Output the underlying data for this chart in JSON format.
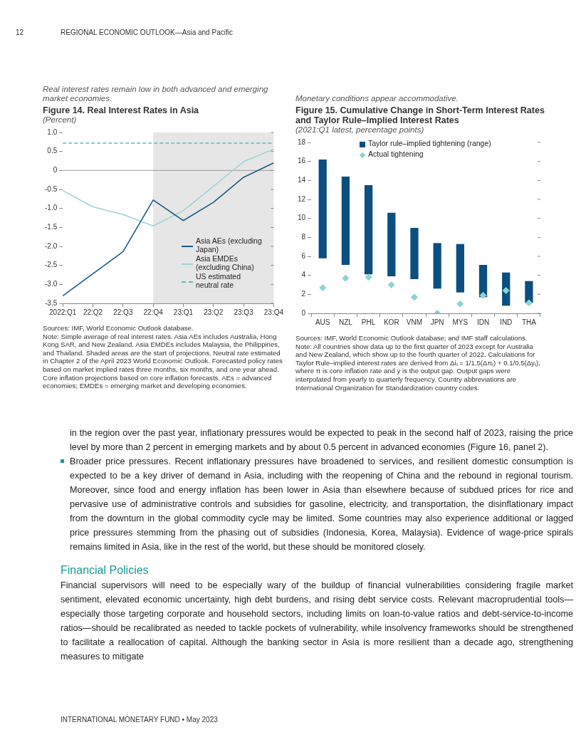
{
  "chart_data": [
    {
      "type": "line",
      "title": "Figure 14. Real Interest Rates in Asia",
      "subtitle": "(Percent)",
      "annotations": [
        "Real interest rates remain low in both advanced and emerging market economies.",
        "Sources: IMF, World Economic Outlook database.",
        "Note: Simple average of real interest rates. Asia AEs includes Australia, Hong Kong SAR, and New Zealand. Asia EMDEs includes Malaysia, the Philippines, and Thailand. Shaded areas are the start of projections. Neutral rate estimated in Chapter 2 of the April 2023 World Economic Outlook. Forecasted policy rates based on market implied rates three months, six months, and one year ahead. Core inflation projections based on core inflation forecasts. AEs = advanced economies; EMDEs = emerging market and developing economies."
      ],
      "categories": [
        "2022:Q1",
        "22:Q2",
        "22:Q3",
        "22:Q4",
        "23:Q1",
        "23:Q2",
        "23:Q3",
        "23:Q4"
      ],
      "series": [
        {
          "name": "Asia AEs (excluding Japan)",
          "color": "#1b5a86",
          "values": [
            -3.3,
            -2.72,
            -2.14,
            -0.78,
            -1.32,
            -0.84,
            -0.18,
            0.2
          ]
        },
        {
          "name": "Asia EMDEs (excluding China)",
          "color": "#9fd3d3",
          "values": [
            -0.53,
            -0.96,
            -1.16,
            -1.46,
            -1.06,
            -0.42,
            0.23,
            0.56
          ]
        },
        {
          "name": "US estimated neutral rate",
          "color": "#5bbcbc",
          "line_style": "dashed",
          "values": [
            0.72,
            0.72,
            0.72,
            0.72,
            0.72,
            0.72,
            0.72,
            0.72
          ]
        }
      ],
      "ylim": [
        -3.5,
        1.0
      ],
      "yticks": [
        {
          "value": 1,
          "label": "1.0"
        },
        0.5,
        0,
        -0.5,
        {
          "value": -1,
          "label": "-1.0"
        },
        -1.5,
        {
          "value": -2,
          "label": "-2.0"
        },
        -2.5,
        {
          "value": -3,
          "label": "-3.0"
        },
        -3.5
      ],
      "ref_lines": [
        {
          "axis": "y",
          "value": 0,
          "color": "#9a9a9a"
        }
      ],
      "bands": [
        {
          "axis": "x",
          "from": "22:Q4",
          "to": "23:Q4",
          "color": "#e6e6e6"
        }
      ],
      "legend": "bottom right",
      "grid": false
    },
    {
      "type": "bar",
      "title": "Figure 15. Cumulative Change in Short-Term Interest Rates and Taylor Rule–Implied Interest Rates",
      "subtitle": "(2021:Q1 latest, percentage points)",
      "annotations": [
        "Monetary conditions appear accommodative.",
        "Sources: IMF, World Economic Outlook database; and IMF staff calculations.",
        "Note: All countries show data up to the first quarter of 2023 except for Australia and New Zealand, which show up to the fourth quarter of 2022. Calculations for Taylor Rule–implied interest rates are derived from Δiₜ = 1/1.5(Δπₜ) + 0.1/0.5(Δyₜ), where π is core inflation rate and y is the output gap. Output gaps were interpolated from yearly to quarterly frequency. Country abbreviations are International Organization for Standardization country codes."
      ],
      "categories": [
        "AUS",
        "NZL",
        "PHL",
        "KOR",
        "VNM",
        "JPN",
        "MYS",
        "IDN",
        "IND",
        "THA"
      ],
      "series": [
        {
          "name": "Taylor rule–implied tightening (range)",
          "color": "#0b4f80",
          "base": [
            5.8,
            5.1,
            4.1,
            3.9,
            3.6,
            2.6,
            2.2,
            1.7,
            0.8,
            1.1
          ],
          "values": [
            10.4,
            9.3,
            9.4,
            6.7,
            5.4,
            4.8,
            5.1,
            3.4,
            3.5,
            2.3
          ]
        },
        {
          "name": "Actual tightening",
          "type": "scatter",
          "marker": "diamond",
          "color": "#8fd3d0",
          "values": [
            2.7,
            3.7,
            3.8,
            3.0,
            1.7,
            0,
            1.0,
            1.9,
            2.4,
            1.1
          ]
        }
      ],
      "ylim": [
        0,
        18
      ],
      "yticks": [
        0,
        2,
        4,
        6,
        8,
        10,
        12,
        14,
        16,
        18
      ],
      "legend": "top right",
      "grid": false
    },
    {
      "type": "other",
      "annotations": [
        "12",
        "REGIONAL ECONOMIC OUTLOOK—Asia and Pacific",
        "in the region over the past year, inflationary pressures would be expected to peak in the second half of 2023, raising the price level by more than 2 percent in emerging markets and by about 0.5 percent in advanced economies (Figure 16, panel 2).",
        "Broader price pressures. Recent inflationary pressures have broadened to services, and resilient domestic consumption is expected to be a key driver of demand in Asia, including with the reopening of China and the rebound in regional tourism. Moreover, since food and energy inflation has been lower in Asia than elsewhere because of subdued prices for rice and pervasive use of administrative controls and subsidies for gasoline, electricity, and transportation, the disinflationary impact from the downturn in the global commodity cycle may be limited. Some countries may also experience additional or lagged price pressures stemming from the phasing out of subsidies (Indonesia, Korea, Malaysia). Evidence of wage-price spirals remains limited in Asia, like in the rest of the world, but these should be monitored closely.",
        "Financial Policies",
        "Financial supervisors will need to be especially wary of the buildup of financial vulnerabilities considering fragile market sentiment, elevated economic uncertainty, high debt burdens, and rising debt service costs. Relevant macroprudential tools—especially those targeting corporate and household sectors, including limits on loan-to-value ratios and debt-service-to-income ratios—should be recalibrated as needed to tackle pockets of vulnerability, while insolvency frameworks should be strengthened to facilitate a reallocation of capital. Although the banking sector in Asia is more resilient than a decade ago, strengthening measures to mitigate",
        "INTERNATIONAL MONETARY FUND • May 2023"
      ]
    }
  ]
}
